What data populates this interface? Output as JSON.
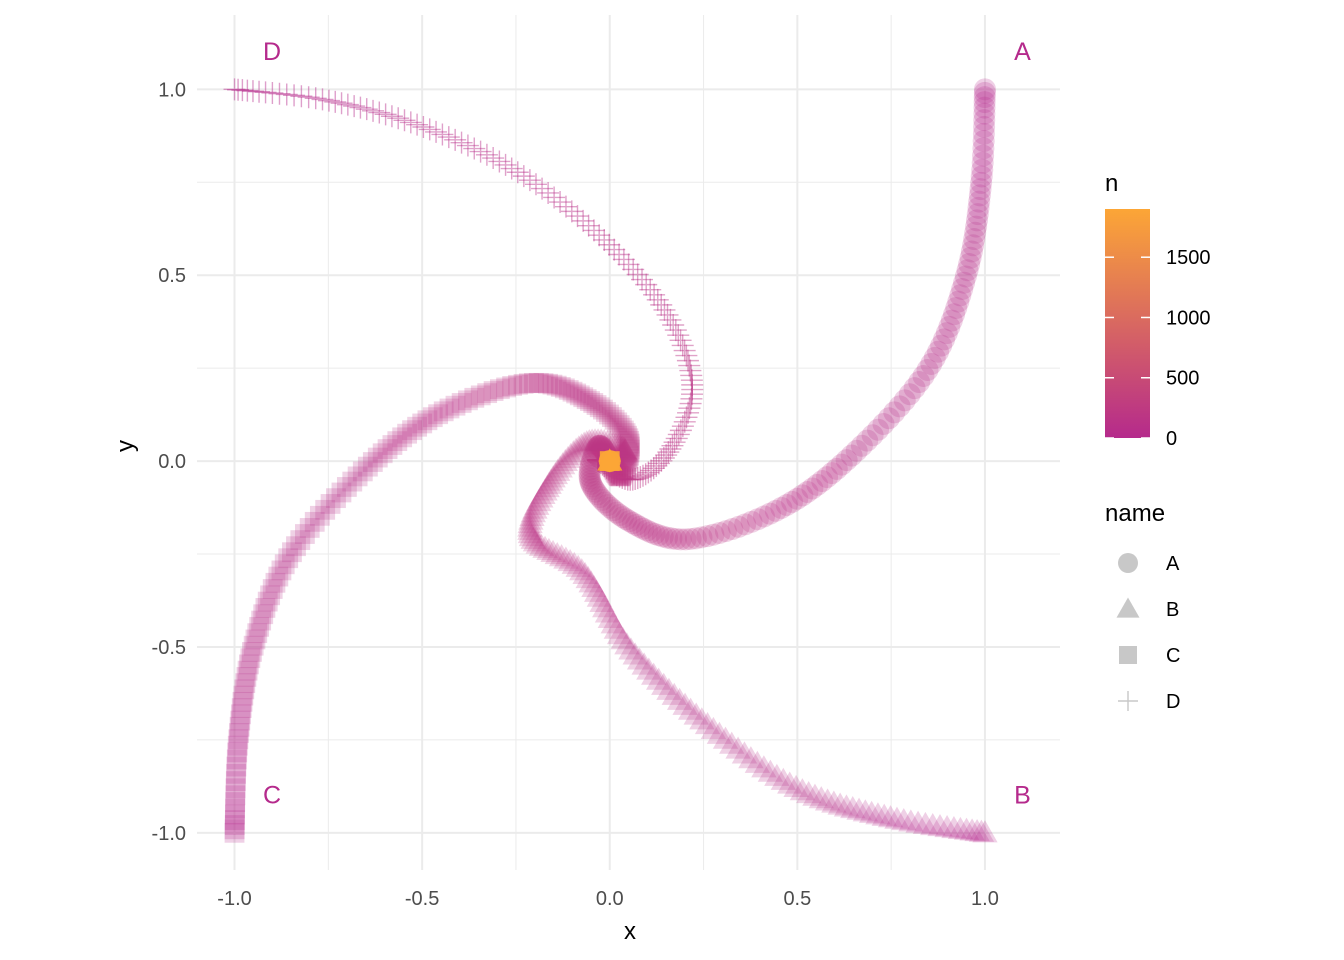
{
  "chart_data": {
    "type": "scatter",
    "xlabel": "x",
    "ylabel": "y",
    "xlim": [
      -1.1,
      1.2
    ],
    "ylim": [
      -1.1,
      1.2
    ],
    "x_ticks": [
      -1.0,
      -0.5,
      0.0,
      0.5,
      1.0
    ],
    "x_tick_labels": [
      "-1.0",
      "-0.5",
      "0.0",
      "0.5",
      "1.0"
    ],
    "y_ticks": [
      -1.0,
      -0.5,
      0.0,
      0.5,
      1.0
    ],
    "y_tick_labels": [
      "-1.0",
      "-0.5",
      "0.0",
      "0.5",
      "1.0"
    ],
    "grid": true,
    "theme": "minimal",
    "points_per_series": 1900,
    "series": [
      {
        "name": "A",
        "shape": "circle",
        "start": [
          1.0,
          1.0
        ],
        "end": [
          0.0,
          0.0
        ],
        "path": [
          [
            1.0,
            1.0
          ],
          [
            0.99,
            0.75
          ],
          [
            0.95,
            0.5
          ],
          [
            0.85,
            0.25
          ],
          [
            0.65,
            0.02
          ],
          [
            0.45,
            -0.13
          ],
          [
            0.21,
            -0.21
          ],
          [
            0.05,
            -0.16
          ],
          [
            -0.05,
            -0.06
          ],
          [
            -0.03,
            0.04
          ],
          [
            0.0,
            0.0
          ]
        ]
      },
      {
        "name": "B",
        "shape": "triangle",
        "start": [
          1.0,
          -1.0
        ],
        "end": [
          0.0,
          0.0
        ],
        "path": [
          [
            1.0,
            -1.0
          ],
          [
            0.75,
            -0.96
          ],
          [
            0.5,
            -0.88
          ],
          [
            0.25,
            -0.7
          ],
          [
            0.05,
            -0.5
          ],
          [
            -0.07,
            -0.3
          ],
          [
            -0.21,
            -0.2
          ],
          [
            -0.16,
            -0.06
          ],
          [
            -0.06,
            0.05
          ],
          [
            0.04,
            0.03
          ],
          [
            0.0,
            0.0
          ]
        ]
      },
      {
        "name": "C",
        "shape": "square",
        "start": [
          -1.0,
          -1.0
        ],
        "end": [
          0.0,
          0.0
        ],
        "path": [
          [
            -1.0,
            -1.0
          ],
          [
            -0.99,
            -0.75
          ],
          [
            -0.95,
            -0.5
          ],
          [
            -0.85,
            -0.25
          ],
          [
            -0.65,
            -0.02
          ],
          [
            -0.45,
            0.13
          ],
          [
            -0.21,
            0.21
          ],
          [
            -0.05,
            0.16
          ],
          [
            0.05,
            0.06
          ],
          [
            0.03,
            -0.04
          ],
          [
            0.0,
            0.0
          ]
        ]
      },
      {
        "name": "D",
        "shape": "cross",
        "start": [
          -1.0,
          1.0
        ],
        "end": [
          0.0,
          0.0
        ],
        "path": [
          [
            -1.0,
            1.0
          ],
          [
            -0.75,
            0.97
          ],
          [
            -0.5,
            0.9
          ],
          [
            -0.25,
            0.78
          ],
          [
            -0.02,
            0.6
          ],
          [
            0.15,
            0.4
          ],
          [
            0.22,
            0.2
          ],
          [
            0.16,
            0.03
          ],
          [
            0.06,
            -0.05
          ],
          [
            -0.03,
            0.0
          ],
          [
            0.0,
            0.0
          ]
        ]
      }
    ],
    "corner_labels": [
      {
        "text": "A",
        "x": 1.1,
        "y": 1.1
      },
      {
        "text": "B",
        "x": 1.1,
        "y": -0.9
      },
      {
        "text": "C",
        "x": -0.9,
        "y": -0.9
      },
      {
        "text": "D",
        "x": -0.9,
        "y": 1.1
      }
    ],
    "color_scale": {
      "title": "n",
      "min": 0,
      "max": 1900,
      "low": "#b52a8c",
      "high": "#fca636",
      "ticks": [
        0,
        500,
        1000,
        1500
      ],
      "tick_labels": [
        "0",
        "500",
        "1000",
        "1500"
      ]
    },
    "shape_legend": {
      "title": "name",
      "items": [
        {
          "label": "A",
          "shape": "circle"
        },
        {
          "label": "B",
          "shape": "triangle"
        },
        {
          "label": "C",
          "shape": "square"
        },
        {
          "label": "D",
          "shape": "cross"
        }
      ],
      "key_color": "#c8c8c8"
    },
    "label_color": "#b52a8c",
    "grid_color": "#ebebeb"
  }
}
